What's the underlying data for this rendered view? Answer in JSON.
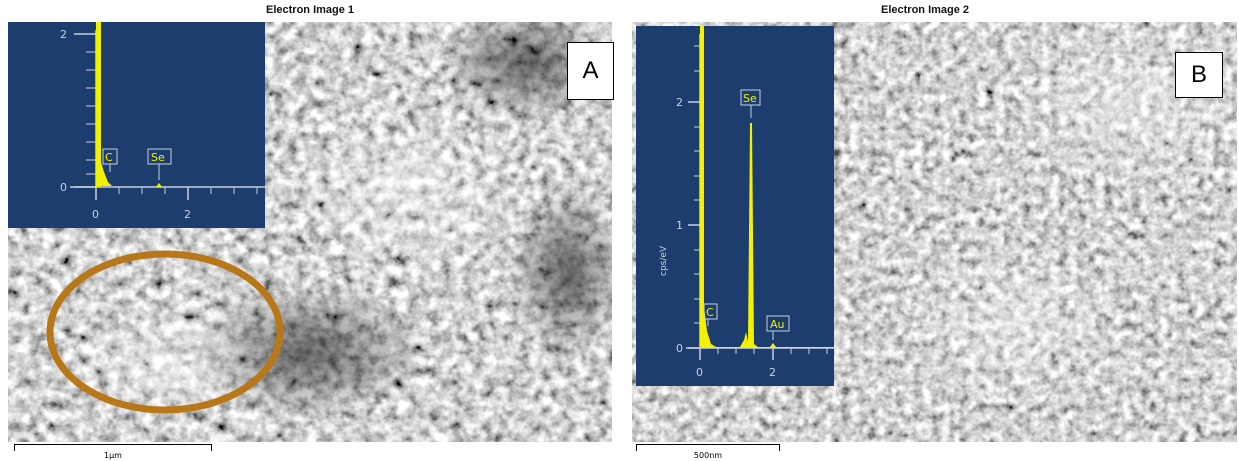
{
  "panels": [
    {
      "title": "Electron Image 1",
      "letter": "A",
      "scale_label": "1µm",
      "spectrum": {
        "y_ticks": [
          "2",
          "0"
        ],
        "x_ticks": [
          "0",
          "2"
        ],
        "peaks": [
          "C",
          "Se"
        ]
      }
    },
    {
      "title": "Electron Image 2",
      "letter": "B",
      "scale_label": "500nm",
      "spectrum": {
        "y_label": "cps/eV",
        "y_ticks": [
          "2",
          "1",
          "0"
        ],
        "x_ticks": [
          "0",
          "2"
        ],
        "peaks": [
          "Se",
          "C",
          "Au"
        ]
      }
    }
  ],
  "colors": {
    "spectrum_bg": "#1c3d6e",
    "spectrum_trace": "#f2f200",
    "axis": "#c8d0dc",
    "highlight_ellipse": "#b8781a"
  }
}
